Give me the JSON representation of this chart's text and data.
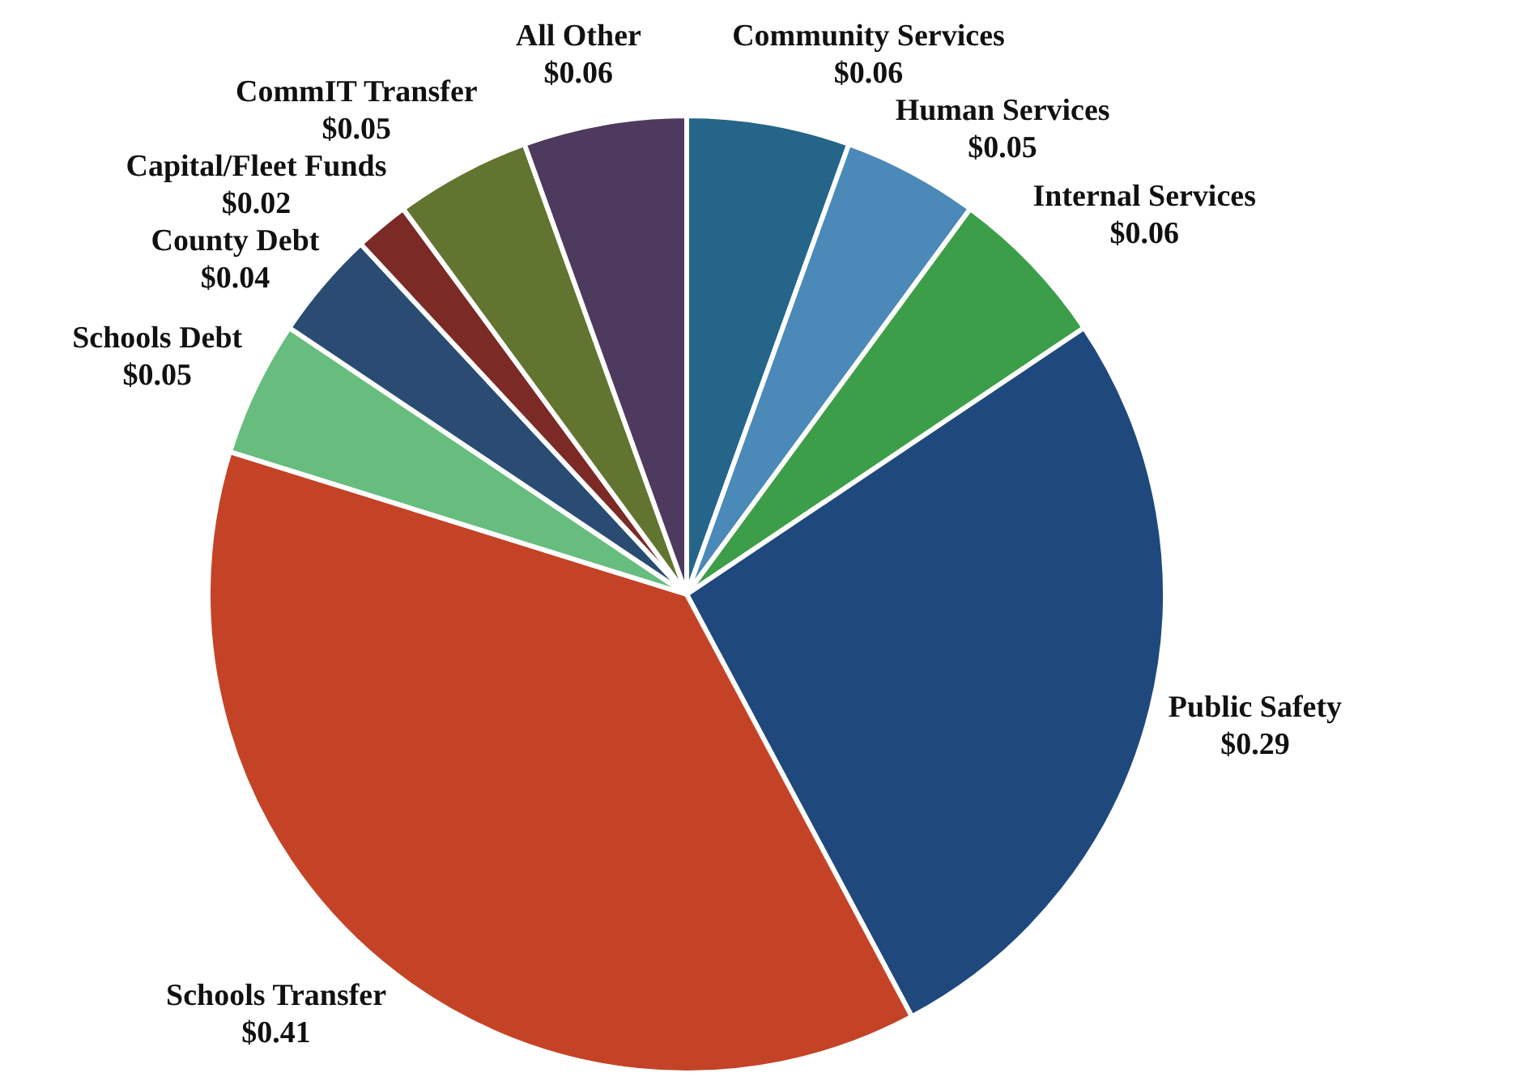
{
  "chart_data": {
    "type": "pie",
    "categories": [
      "Community Services",
      "Human Services",
      "Internal Services",
      "Public Safety",
      "Schools Transfer",
      "Schools Debt",
      "County Debt",
      "Capital/Fleet Funds",
      "CommIT Transfer",
      "All Other"
    ],
    "values": [
      0.06,
      0.05,
      0.06,
      0.29,
      0.41,
      0.05,
      0.04,
      0.02,
      0.05,
      0.06
    ],
    "value_labels": [
      "$0.06",
      "$0.05",
      "$0.06",
      "$0.29",
      "$0.41",
      "$0.05",
      "$0.04",
      "$0.02",
      "$0.05",
      "$0.06"
    ],
    "colors": [
      "#256589",
      "#4a89b8",
      "#3c9e48",
      "#1f497d",
      "#c44327",
      "#67bd7e",
      "#2a4c72",
      "#7b2a26",
      "#617530",
      "#4d3a5e"
    ],
    "legend": false
  }
}
